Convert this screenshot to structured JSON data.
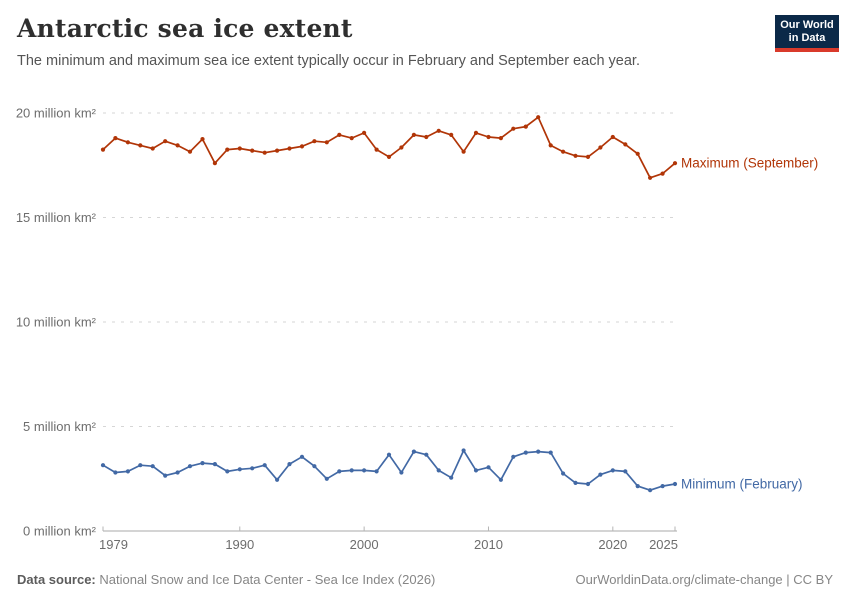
{
  "header": {
    "subtitle": "The minimum and maximum sea ice extent typically occur in February and September each year.",
    "logo": {
      "line1": "Our World",
      "line2": "in Data",
      "bg_color": "#0b2948",
      "accent_color": "#d93a2b"
    }
  },
  "chart_data": {
    "type": "line",
    "title": "Antarctic sea ice extent",
    "xlabel": "",
    "ylabel": "million km²",
    "xlim": [
      1979,
      2025
    ],
    "ylim": [
      0,
      20
    ],
    "grid": "horizontal-dashed",
    "legend": "series-end-labels",
    "xticks": [
      1979,
      1990,
      2000,
      2010,
      2020,
      2025
    ],
    "yticks": [
      0,
      5,
      10,
      15,
      20
    ],
    "ytick_labels": [
      "0 million km²",
      "5 million km²",
      "10 million km²",
      "15 million km²",
      "20 million km²"
    ],
    "x": [
      1979,
      1980,
      1981,
      1982,
      1983,
      1984,
      1985,
      1986,
      1987,
      1988,
      1989,
      1990,
      1991,
      1992,
      1993,
      1994,
      1995,
      1996,
      1997,
      1998,
      1999,
      2000,
      2001,
      2002,
      2003,
      2004,
      2005,
      2006,
      2007,
      2008,
      2009,
      2010,
      2011,
      2012,
      2013,
      2014,
      2015,
      2016,
      2017,
      2018,
      2019,
      2020,
      2021,
      2022,
      2023,
      2024,
      2025
    ],
    "series": [
      {
        "name": "Maximum (September)",
        "color": "#b13507",
        "values": [
          18.25,
          18.8,
          18.6,
          18.45,
          18.3,
          18.65,
          18.45,
          18.15,
          18.75,
          17.6,
          18.25,
          18.3,
          18.2,
          18.1,
          18.2,
          18.3,
          18.4,
          18.65,
          18.6,
          18.95,
          18.8,
          19.05,
          18.25,
          17.9,
          18.35,
          18.95,
          18.85,
          19.15,
          18.95,
          18.15,
          19.05,
          18.85,
          18.8,
          19.25,
          19.35,
          19.8,
          18.45,
          18.15,
          17.95,
          17.9,
          18.35,
          18.85,
          18.5,
          18.05,
          16.9,
          17.1,
          17.6
        ]
      },
      {
        "name": "Minimum (February)",
        "color": "#4269a5",
        "values": [
          3.15,
          2.8,
          2.85,
          3.15,
          3.1,
          2.65,
          2.8,
          3.1,
          3.25,
          3.2,
          2.85,
          2.95,
          3.0,
          3.15,
          2.45,
          3.2,
          3.55,
          3.1,
          2.5,
          2.85,
          2.9,
          2.9,
          2.85,
          3.65,
          2.8,
          3.8,
          3.65,
          2.9,
          2.55,
          3.85,
          2.9,
          3.05,
          2.45,
          3.55,
          3.75,
          3.8,
          3.75,
          2.75,
          2.3,
          2.25,
          2.7,
          2.9,
          2.85,
          2.15,
          1.95,
          2.15,
          2.25
        ]
      }
    ]
  },
  "footer": {
    "source_label": "Data source:",
    "source_text": " National Snow and Ice Data Center - Sea Ice Index (2026)",
    "attribution": "OurWorldinData.org/climate-change | CC BY"
  }
}
